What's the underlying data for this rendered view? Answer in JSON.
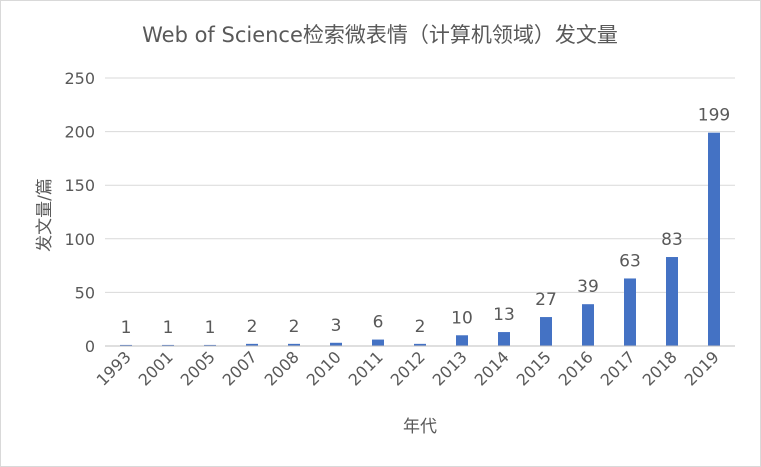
{
  "chart_data": {
    "type": "bar",
    "title": "Web of Science检索微表情（计算机领域）发文量",
    "xlabel": "年代",
    "ylabel": "发文量/篇",
    "categories": [
      "1993",
      "2001",
      "2005",
      "2007",
      "2008",
      "2010",
      "2011",
      "2012",
      "2013",
      "2014",
      "2015",
      "2016",
      "2017",
      "2018",
      "2019"
    ],
    "values": [
      1,
      1,
      1,
      2,
      2,
      3,
      6,
      2,
      10,
      13,
      27,
      39,
      63,
      83,
      199
    ],
    "ylim": [
      0,
      250
    ],
    "yticks": [
      0,
      50,
      100,
      150,
      200,
      250
    ],
    "grid": true,
    "legend": "none",
    "bar_color": "#4472c4",
    "grid_color": "#d9d9d9",
    "axis_color": "#bfbfbf"
  }
}
